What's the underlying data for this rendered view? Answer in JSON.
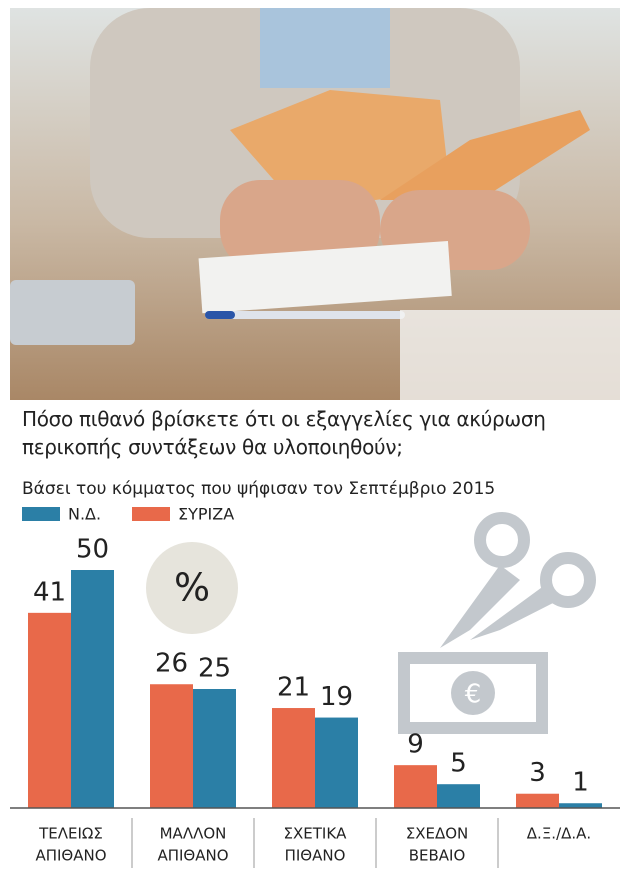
{
  "chart_data": {
    "type": "bar",
    "title": "Πόσο πιθανό βρίσκετε ότι οι εξαγγελίες για ακύρωση περικοπής συντάξεων θα υλοποιηθούν;",
    "subtitle": "Βάσει του κόμματος που ψήφισαν τον Σεπτέμβριο 2015",
    "unit_label": "%",
    "categories": [
      [
        "ΤΕΛΕΙΩΣ",
        "ΑΠΙΘΑΝΟ"
      ],
      [
        "ΜΑΛΛΟΝ",
        "ΑΠΙΘΑΝΟ"
      ],
      [
        "ΣΧΕΤΙΚΑ",
        "ΠΙΘΑΝΟ"
      ],
      [
        "ΣΧΕΔΟΝ",
        "ΒΕΒΑΙΟ"
      ],
      [
        "Δ.Ξ./Δ.Α."
      ]
    ],
    "series": [
      {
        "name": "Ν.Δ.",
        "color": "#2b7fa6",
        "values": [
          50,
          25,
          19,
          5,
          1
        ]
      },
      {
        "name": "ΣΥΡΙΖΑ",
        "color": "#e8694a",
        "values": [
          41,
          26,
          21,
          9,
          3
        ]
      }
    ]
  }
}
